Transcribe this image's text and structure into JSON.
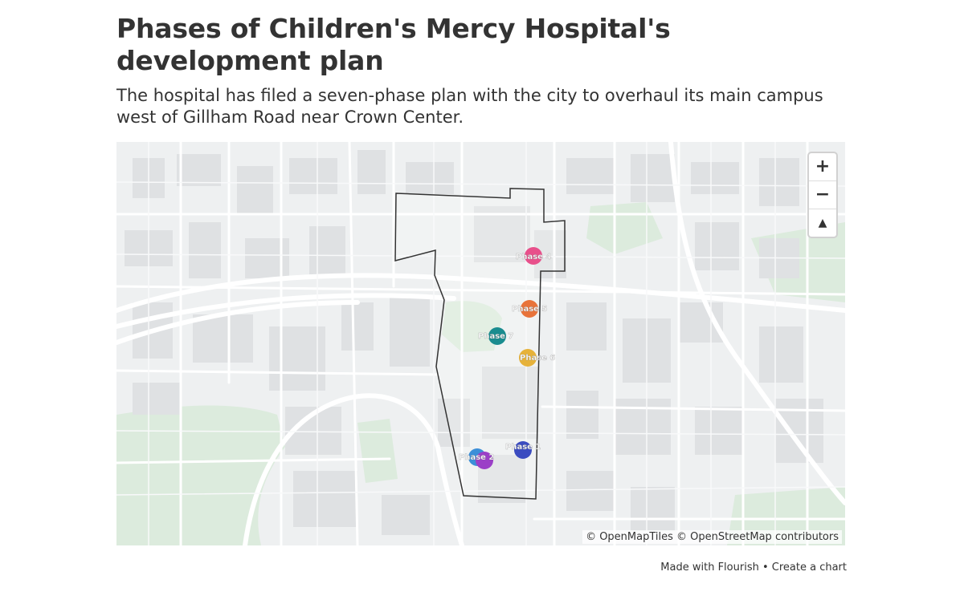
{
  "header": {
    "title": "Phases of Children's Mercy Hospital's development plan",
    "subtitle": "The hospital has filed a seven-phase plan with the city to overhaul its main campus west of Gillham Road near Crown Center."
  },
  "map": {
    "controls": {
      "zoom_in_label": "+",
      "zoom_out_label": "−",
      "reset_bearing_label": "▲"
    },
    "attribution": "© OpenMapTiles © OpenStreetMap contributors",
    "markers": [
      {
        "label": "Phase 1",
        "color": "#3b4cc0"
      },
      {
        "label": "Phase 2",
        "color": "#9b3fc7"
      },
      {
        "label": "Phase 3",
        "color": "#3c8fd8"
      },
      {
        "label": "Phase 4",
        "color": "#e8508b"
      },
      {
        "label": "Phase 5",
        "color": "#e8733a"
      },
      {
        "label": "Phase 6",
        "color": "#e6b23a"
      },
      {
        "label": "Phase 7",
        "color": "#1a8c8f"
      }
    ]
  },
  "footer": {
    "made_with": "Made with Flourish",
    "separator": " • ",
    "create_chart": "Create a chart"
  }
}
